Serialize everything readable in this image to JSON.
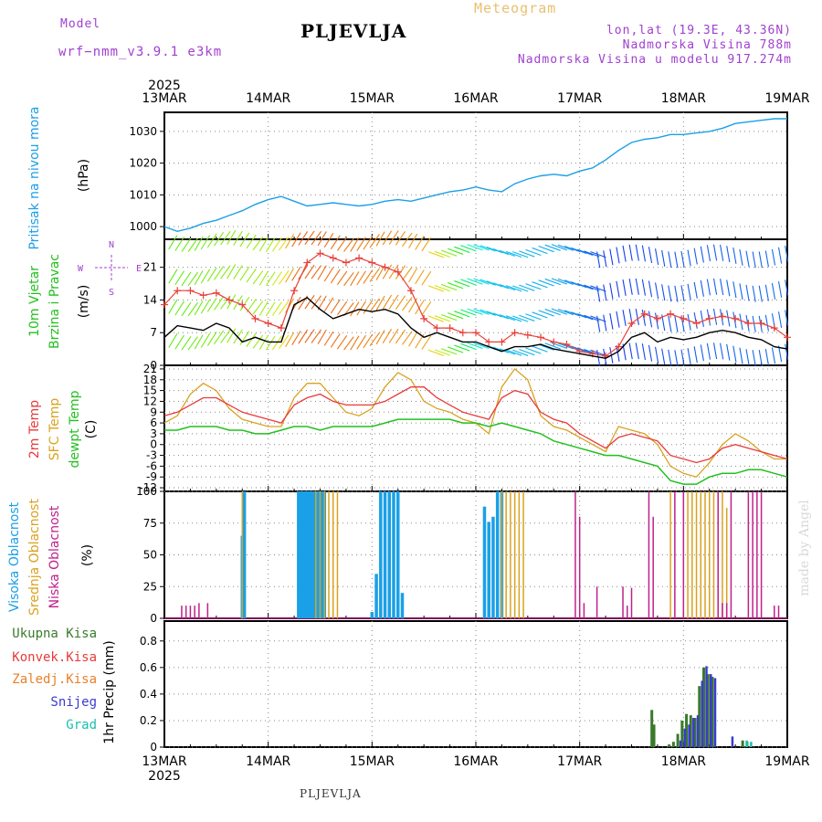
{
  "header": {
    "model_label": "Model",
    "model_name": "wrf−nmm_v3.9.1  e3km",
    "title": "PLJEVLJA",
    "meteogram": "Meteogram",
    "lonlat": "lon,lat (19.3E, 43.36N)",
    "elevation": "Nadmorska Visina 788m",
    "model_elevation": "Nadmorska Visina u modelu 917.274m",
    "footer_title": "PLJEVLJA",
    "watermark": "made by Angel"
  },
  "colors": {
    "pressure": "#1aa0e6",
    "temp2m": "#e83a3a",
    "sfc": "#d9a21f",
    "dewpt": "#22c01e",
    "wind_speed": "#000000",
    "gust": "#e8403a",
    "high_cloud": "#1aa0e6",
    "mid_cloud": "#d9a21f",
    "low_cloud": "#c0208c",
    "total_precip": "#3a7a2a",
    "conv_precip": "#e83a3a",
    "frozen_precip": "#e8802a",
    "snow": "#3a3ad0",
    "hail": "#1ac0b0",
    "label_purple": "#a040d0",
    "header_orange": "#e8c070"
  },
  "chart_data": {
    "type": "line",
    "x_axis": {
      "top_year": "2025",
      "bottom_year": "2025",
      "ticks": [
        "13MAR",
        "14MAR",
        "15MAR",
        "16MAR",
        "17MAR",
        "18MAR",
        "19MAR"
      ],
      "range_hours": [
        0,
        144
      ]
    },
    "panels": {
      "pressure": {
        "ylabel": "Pritisak na nivou mora",
        "unit": "(hPa)",
        "ylim": [
          996,
          1036
        ],
        "yticks": [
          1000,
          1010,
          1020,
          1030
        ],
        "series": [
          {
            "name": "Pressure",
            "x": [
              0,
              3,
              6,
              9,
              12,
              15,
              18,
              21,
              24,
              27,
              30,
              33,
              36,
              39,
              42,
              45,
              48,
              51,
              54,
              57,
              60,
              63,
              66,
              69,
              72,
              75,
              78,
              81,
              84,
              87,
              90,
              93,
              96,
              99,
              102,
              105,
              108,
              111,
              114,
              117,
              120,
              123,
              126,
              129,
              132,
              135,
              138,
              141,
              144
            ],
            "values": [
              1000,
              998.5,
              999.5,
              1001,
              1002,
              1003.5,
              1005,
              1007,
              1008.5,
              1009.5,
              1008,
              1006.5,
              1007,
              1007.5,
              1007,
              1006.5,
              1007,
              1008,
              1008.5,
              1008,
              1009,
              1010,
              1011,
              1011.5,
              1012.5,
              1011.5,
              1011,
              1013.5,
              1015,
              1016,
              1016.5,
              1016,
              1017.5,
              1018.5,
              1021,
              1024,
              1026.5,
              1027.5,
              1028,
              1029,
              1029,
              1029.5,
              1030,
              1031,
              1032.5,
              1033,
              1033.5,
              1034,
              1034
            ]
          }
        ]
      },
      "wind": {
        "ylabel": "10m Vjetar",
        "ylabel2": "Brzina i Pravac",
        "unit": "(m/s)",
        "compass": {
          "n": "N",
          "w": "W",
          "e": "E",
          "s": "S"
        },
        "ylim": [
          0,
          27
        ],
        "yticks": [
          0,
          7,
          14,
          21
        ],
        "series": [
          {
            "name": "10m wind speed",
            "x": [
              0,
              3,
              6,
              9,
              12,
              15,
              18,
              21,
              24,
              27,
              30,
              33,
              36,
              39,
              42,
              45,
              48,
              51,
              54,
              57,
              60,
              63,
              66,
              69,
              72,
              75,
              78,
              81,
              84,
              87,
              90,
              93,
              96,
              99,
              102,
              105,
              108,
              111,
              114,
              117,
              120,
              123,
              126,
              129,
              132,
              135,
              138,
              141,
              144
            ],
            "values": [
              6,
              8.5,
              8,
              7.5,
              9,
              8,
              5,
              6,
              5,
              5,
              13,
              14.5,
              12,
              10,
              11,
              12,
              11.5,
              12,
              11,
              8,
              6,
              7,
              6,
              5,
              5,
              4,
              3,
              4,
              4,
              4.5,
              3.5,
              3,
              2.5,
              2,
              1.5,
              3,
              6,
              7,
              5,
              6,
              5.5,
              6,
              7,
              7.5,
              7,
              6,
              5.5,
              4,
              3.5
            ]
          },
          {
            "name": "Wind gust",
            "x": [
              0,
              3,
              6,
              9,
              12,
              15,
              18,
              21,
              24,
              27,
              30,
              33,
              36,
              39,
              42,
              45,
              48,
              51,
              54,
              57,
              60,
              63,
              66,
              69,
              72,
              75,
              78,
              81,
              84,
              87,
              90,
              93,
              96,
              99,
              102,
              105,
              108,
              111,
              114,
              117,
              120,
              123,
              126,
              129,
              132,
              135,
              138,
              141,
              144
            ],
            "values": [
              13,
              16,
              16,
              15,
              15.5,
              14,
              13,
              10,
              9,
              8,
              16,
              22,
              24,
              23,
              22,
              23,
              22,
              21,
              20,
              16,
              10,
              8,
              8,
              7,
              7,
              5,
              5,
              7,
              6.5,
              6,
              5,
              4.5,
              3,
              2.5,
              2,
              4,
              9,
              11,
              10,
              11,
              10,
              9,
              10,
              10.5,
              10,
              9,
              9,
              8,
              6
            ]
          }
        ]
      },
      "temperature": {
        "labels": [
          "2m Temp",
          "SFC Temp",
          "dewpt Temp"
        ],
        "unit": "(C)",
        "ylim": [
          -13,
          22
        ],
        "yticks": [
          -12,
          -9,
          -6,
          -3,
          0,
          3,
          6,
          9,
          12,
          15,
          18,
          21
        ],
        "series": [
          {
            "name": "2m Temp",
            "x": [
              0,
              3,
              6,
              9,
              12,
              15,
              18,
              21,
              24,
              27,
              30,
              33,
              36,
              39,
              42,
              45,
              48,
              51,
              54,
              57,
              60,
              63,
              66,
              69,
              72,
              75,
              78,
              81,
              84,
              87,
              90,
              93,
              96,
              99,
              102,
              105,
              108,
              111,
              114,
              117,
              120,
              123,
              126,
              129,
              132,
              135,
              138,
              141,
              144
            ],
            "values": [
              8,
              9,
              11,
              13,
              13,
              11,
              9,
              8,
              7,
              6,
              11,
              13,
              14,
              12,
              11,
              11,
              11,
              12,
              14,
              16,
              16,
              13,
              11,
              9,
              8,
              7,
              13,
              15,
              14,
              9,
              7,
              6,
              3,
              1,
              -1,
              2,
              3,
              2,
              1,
              -3,
              -4,
              -5,
              -4,
              -1,
              0,
              -1,
              -2,
              -3,
              -4
            ]
          },
          {
            "name": "SFC Temp",
            "x": [
              0,
              3,
              6,
              9,
              12,
              15,
              18,
              21,
              24,
              27,
              30,
              33,
              36,
              39,
              42,
              45,
              48,
              51,
              54,
              57,
              60,
              63,
              66,
              69,
              72,
              75,
              78,
              81,
              84,
              87,
              90,
              93,
              96,
              99,
              102,
              105,
              108,
              111,
              114,
              117,
              120,
              123,
              126,
              129,
              132,
              135,
              138,
              141,
              144
            ],
            "values": [
              6,
              8,
              14,
              17,
              15,
              10,
              7,
              6,
              5,
              5,
              13,
              17,
              17,
              13,
              9,
              8,
              10,
              16,
              20,
              18,
              12,
              10,
              9,
              7,
              6,
              3,
              16,
              21,
              18,
              8,
              5,
              4,
              2,
              0,
              -2,
              5,
              4,
              3,
              0,
              -6,
              -8,
              -9,
              -5,
              0,
              3,
              1,
              -2,
              -4,
              -4
            ]
          },
          {
            "name": "Dewpoint",
            "x": [
              0,
              3,
              6,
              9,
              12,
              15,
              18,
              21,
              24,
              27,
              30,
              33,
              36,
              39,
              42,
              45,
              48,
              51,
              54,
              57,
              60,
              63,
              66,
              69,
              72,
              75,
              78,
              81,
              84,
              87,
              90,
              93,
              96,
              99,
              102,
              105,
              108,
              111,
              114,
              117,
              120,
              123,
              126,
              129,
              132,
              135,
              138,
              141,
              144
            ],
            "values": [
              4,
              4,
              5,
              5,
              5,
              4,
              4,
              3,
              3,
              4,
              5,
              5,
              4,
              5,
              5,
              5,
              5,
              6,
              7,
              7,
              7,
              7,
              7,
              6,
              6,
              5,
              6,
              5,
              4,
              3,
              1,
              0,
              -1,
              -2,
              -3,
              -3,
              -4,
              -5,
              -6,
              -10,
              -11,
              -11,
              -9,
              -8,
              -8,
              -7,
              -7,
              -8,
              -9
            ]
          }
        ]
      },
      "cloud": {
        "labels": [
          "Visoka Oblacnost",
          "Srednja Oblacnost",
          "Niska Oblacnost"
        ],
        "unit": "(%)",
        "ylim": [
          0,
          100
        ],
        "yticks": [
          0,
          25,
          50,
          75,
          100
        ],
        "series": [
          {
            "name": "Visoka Oblacnost",
            "x": [
              18,
              18.5,
              31,
              31.5,
              32,
              32.5,
              33,
              33.5,
              34,
              34.5,
              35,
              35.5,
              36,
              36.5,
              37,
              48,
              49,
              50,
              51,
              52,
              53,
              54,
              55,
              74,
              75,
              76,
              77,
              78
            ],
            "values": [
              65,
              100,
              100,
              100,
              100,
              100,
              100,
              100,
              100,
              100,
              100,
              100,
              100,
              100,
              100,
              5,
              35,
              100,
              100,
              100,
              100,
              100,
              20,
              88,
              76,
              80,
              100,
              100
            ]
          },
          {
            "name": "Srednja Oblacnost",
            "x": [
              18,
              35,
              36,
              37,
              38,
              39,
              40,
              78,
              79,
              80,
              81,
              82,
              83,
              117,
              121,
              122,
              123,
              124,
              125,
              126,
              127,
              128,
              129,
              130
            ],
            "values": [
              100,
              100,
              100,
              100,
              100,
              100,
              100,
              100,
              100,
              100,
              100,
              100,
              100,
              100,
              100,
              100,
              100,
              100,
              100,
              100,
              100,
              100,
              100,
              87
            ]
          },
          {
            "name": "Niska Oblacnost",
            "x": [
              4,
              5,
              6,
              7,
              8,
              10,
              95,
              96,
              97,
              100,
              106,
              107,
              108,
              112,
              113,
              118,
              120,
              128,
              129,
              130,
              131,
              135,
              136,
              137,
              138,
              141,
              142
            ],
            "values": [
              10,
              10,
              10,
              10,
              12,
              12,
              100,
              80,
              12,
              25,
              25,
              10,
              24,
              100,
              80,
              100,
              100,
              100,
              12,
              12,
              100,
              100,
              100,
              100,
              100,
              10,
              10
            ]
          }
        ]
      },
      "precip": {
        "labels": [
          "Ukupna Kisa",
          "Konvek.Kisa",
          "Zaledj.Kisa",
          "Snijeg",
          "Grad"
        ],
        "unit": "1hr Precip (mm)",
        "ylim": [
          0,
          0.95
        ],
        "yticks": [
          0,
          0.2,
          0.4,
          0.6,
          0.8
        ],
        "series": [
          {
            "name": "Ukupna Kisa",
            "x": [
              113,
              113.5,
              117,
              118,
              119,
              120,
              121,
              122,
              123,
              124,
              125,
              126,
              127,
              134,
              135
            ],
            "values": [
              0.28,
              0.17,
              0.02,
              0.04,
              0.1,
              0.2,
              0.25,
              0.24,
              0.22,
              0.46,
              0.6,
              0.55,
              0.53,
              0.05,
              0.04
            ]
          },
          {
            "name": "Snijeg",
            "x": [
              119,
              120,
              121,
              122,
              123,
              124,
              125,
              126,
              127,
              131
            ],
            "values": [
              0.05,
              0.14,
              0.17,
              0.22,
              0.24,
              0.5,
              0.61,
              0.55,
              0.52,
              0.08
            ]
          },
          {
            "name": "Grad",
            "x": [
              134,
              135
            ],
            "values": [
              0.05,
              0.04
            ]
          }
        ]
      }
    }
  }
}
